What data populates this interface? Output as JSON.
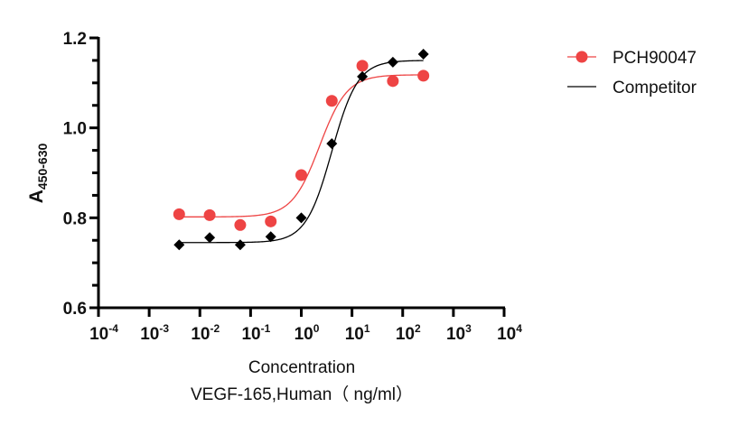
{
  "chart_data": {
    "type": "scatter",
    "title": "",
    "xlabel": "Concentration",
    "xlabel_line2": "VEGF-165,Human（ ng/ml）",
    "ylabel": "A",
    "ylabel_subscript": "450-630",
    "xscale": "log10",
    "xlim": [
      0.0001,
      10000
    ],
    "ylim": [
      0.6,
      1.2
    ],
    "x_ticks": [
      {
        "base": "10",
        "exp": "-4",
        "value": 0.0001
      },
      {
        "base": "10",
        "exp": "-3",
        "value": 0.001
      },
      {
        "base": "10",
        "exp": "-2",
        "value": 0.01
      },
      {
        "base": "10",
        "exp": "-1",
        "value": 0.1
      },
      {
        "base": "10",
        "exp": "0",
        "value": 1
      },
      {
        "base": "10",
        "exp": "1",
        "value": 10
      },
      {
        "base": "10",
        "exp": "2",
        "value": 100
      },
      {
        "base": "10",
        "exp": "3",
        "value": 1000
      },
      {
        "base": "10",
        "exp": "4",
        "value": 10000
      }
    ],
    "y_ticks": [
      {
        "label": "0.6",
        "value": 0.6
      },
      {
        "label": "0.8",
        "value": 0.8
      },
      {
        "label": "1.0",
        "value": 1.0
      },
      {
        "label": "1.2",
        "value": 1.2
      }
    ],
    "y_minor_step": 0.05,
    "grid": false,
    "legend_position": "top-right",
    "series": [
      {
        "name": "PCH90047",
        "color": "#ee4444",
        "marker": "circle",
        "x": [
          0.0039,
          0.0156,
          0.0625,
          0.25,
          1,
          4,
          16,
          64,
          256
        ],
        "y": [
          0.808,
          0.806,
          0.784,
          0.792,
          0.895,
          1.06,
          1.138,
          1.104,
          1.116
        ],
        "fit": {
          "model": "4PL",
          "bottom": 0.802,
          "top": 1.118,
          "ec50": 2.3,
          "hill": 1.6
        }
      },
      {
        "name": "Competitor",
        "color": "#000000",
        "marker": "diamond",
        "x": [
          0.0039,
          0.0156,
          0.0625,
          0.25,
          1,
          4,
          16,
          64,
          256
        ],
        "y": [
          0.74,
          0.756,
          0.74,
          0.758,
          0.8,
          0.965,
          1.114,
          1.146,
          1.164
        ],
        "fit": {
          "model": "4PL",
          "bottom": 0.745,
          "top": 1.15,
          "ec50": 4.0,
          "hill": 1.7
        }
      }
    ]
  }
}
